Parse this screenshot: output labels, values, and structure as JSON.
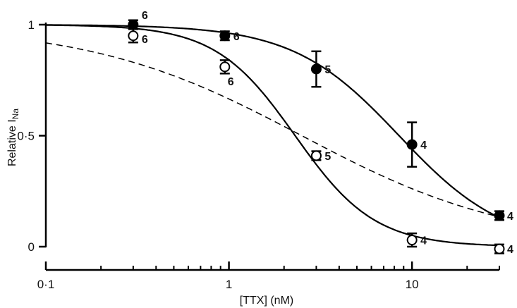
{
  "chart_data": {
    "type": "scatter",
    "title": "",
    "xlabel": "[TTX] (nM)",
    "ylabel_main": "Relative I",
    "ylabel_sub": "Na",
    "x_scale": "log",
    "xlim": [
      0.1,
      30
    ],
    "ylim": [
      0,
      1
    ],
    "x_ticks": [
      0.1,
      1,
      10
    ],
    "x_tick_labels": [
      "0·1",
      "1",
      "10"
    ],
    "y_ticks": [
      0,
      0.5,
      1
    ],
    "y_tick_labels": [
      "0",
      "0·5",
      "1"
    ],
    "grid": false,
    "legend": "none",
    "series": [
      {
        "marker": "filled-circle",
        "points": [
          {
            "x": 0.3,
            "y": 1.0,
            "err": 0.02,
            "n": "6"
          },
          {
            "x": 0.95,
            "y": 0.95,
            "err": 0.02,
            "n": "6"
          },
          {
            "x": 3,
            "y": 0.8,
            "err": 0.08,
            "n": "5"
          },
          {
            "x": 10,
            "y": 0.46,
            "err": 0.1,
            "n": "4"
          },
          {
            "x": 30,
            "y": 0.14,
            "err": 0.02,
            "n": "4"
          }
        ],
        "fit": {
          "style": "solid",
          "type": "hill",
          "ic50": 8.5,
          "nh": 1.5
        }
      },
      {
        "marker": "open-circle",
        "points": [
          {
            "x": 0.3,
            "y": 0.95,
            "err": 0.03,
            "n": "6"
          },
          {
            "x": 0.95,
            "y": 0.81,
            "err": 0.03,
            "n": "6"
          },
          {
            "x": 3,
            "y": 0.41,
            "err": 0.02,
            "n": "5"
          },
          {
            "x": 10,
            "y": 0.03,
            "err": 0.03,
            "n": "4"
          },
          {
            "x": 30,
            "y": -0.01,
            "err": 0.02,
            "n": "4"
          }
        ],
        "fit": {
          "style": "solid",
          "type": "hill",
          "ic50": 2.3,
          "nh": 2.0
        }
      }
    ],
    "reference_curve": {
      "style": "dashed",
      "type": "hill",
      "ic50": 2.5,
      "nh": 0.75
    }
  }
}
